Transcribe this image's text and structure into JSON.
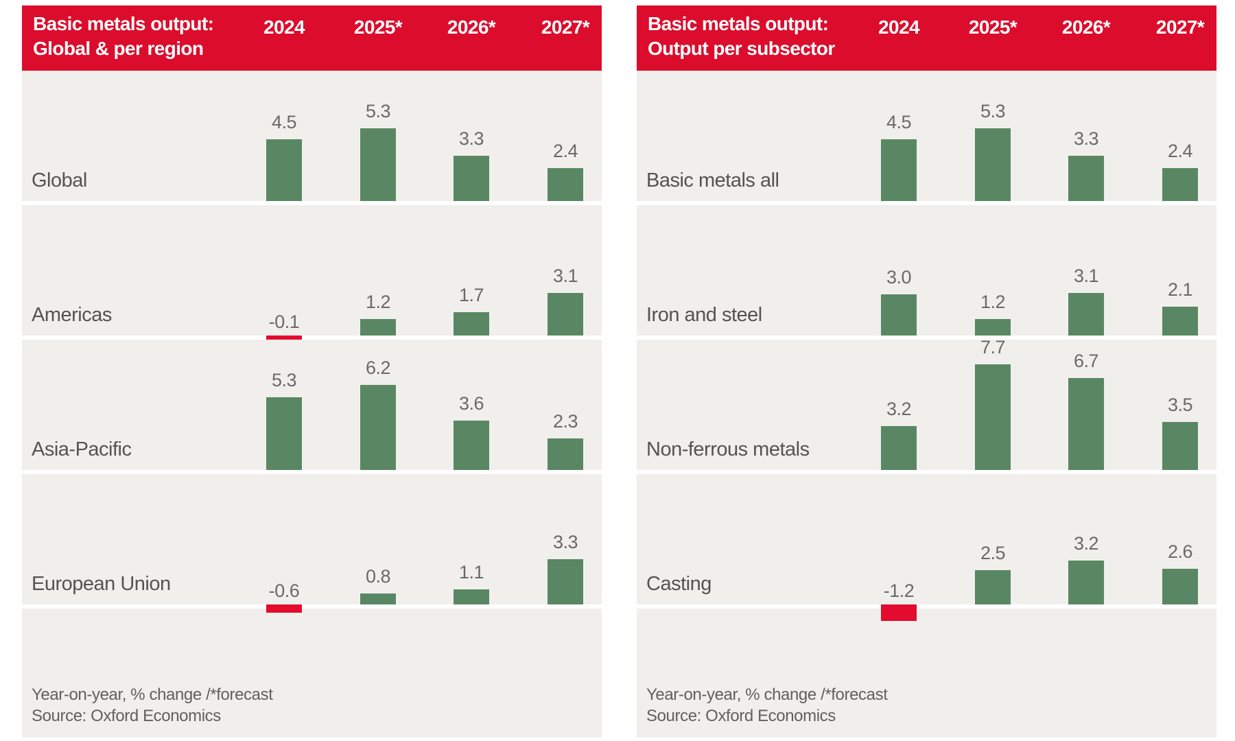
{
  "colors": {
    "header_bg": "#dc0c2c",
    "header_text": "#ffffff",
    "bar_positive": "#5a8763",
    "bar_negative": "#e30b2e",
    "band_bg": "#f1efec",
    "category_text": "#55534e",
    "value_text": "#6b6965",
    "footer_text": "#625f5b"
  },
  "years": [
    "2024",
    "2025*",
    "2026*",
    "2027*"
  ],
  "panels": [
    {
      "title_line1": "Basic metals output:",
      "title_line2": "Global & per region",
      "rows": [
        {
          "label": "Global",
          "values": [
            4.5,
            5.3,
            3.3,
            2.4
          ]
        },
        {
          "label": "Americas",
          "values": [
            -0.1,
            1.2,
            1.7,
            3.1
          ]
        },
        {
          "label": "Asia-Pacific",
          "values": [
            5.3,
            6.2,
            3.6,
            2.3
          ]
        },
        {
          "label": "European Union",
          "values": [
            -0.6,
            0.8,
            1.1,
            3.3
          ]
        }
      ],
      "footnote": "Year-on-year, % change /*forecast",
      "source": "Source: Oxford Economics"
    },
    {
      "title_line1": "Basic metals output:",
      "title_line2": "Output per subsector",
      "rows": [
        {
          "label": "Basic metals all",
          "values": [
            4.5,
            5.3,
            3.3,
            2.4
          ]
        },
        {
          "label": "Iron and steel",
          "values": [
            3.0,
            1.2,
            3.1,
            2.1
          ]
        },
        {
          "label": "Non-ferrous metals",
          "values": [
            3.2,
            7.7,
            6.7,
            3.5
          ]
        },
        {
          "label": "Casting",
          "values": [
            -1.2,
            2.5,
            3.2,
            2.6
          ]
        }
      ],
      "footnote": "Year-on-year, % change /*forecast",
      "source": "Source: Oxford Economics"
    }
  ],
  "chart_data": [
    {
      "type": "bar",
      "title": "Basic metals output: Global & per region",
      "categories": [
        "2024",
        "2025*",
        "2026*",
        "2027*"
      ],
      "series": [
        {
          "name": "Global",
          "values": [
            4.5,
            5.3,
            3.3,
            2.4
          ]
        },
        {
          "name": "Americas",
          "values": [
            -0.1,
            1.2,
            1.7,
            3.1
          ]
        },
        {
          "name": "Asia-Pacific",
          "values": [
            5.3,
            6.2,
            3.6,
            2.3
          ]
        },
        {
          "name": "European Union",
          "values": [
            -0.6,
            0.8,
            1.1,
            3.3
          ]
        }
      ],
      "ylabel": "Year-on-year, % change",
      "note": "/*forecast",
      "source": "Oxford Economics",
      "data_labels": true,
      "grid": false,
      "legend_position": "none",
      "positive_color": "#5a8763",
      "negative_color": "#e30b2e"
    },
    {
      "type": "bar",
      "title": "Basic metals output: Output per subsector",
      "categories": [
        "2024",
        "2025*",
        "2026*",
        "2027*"
      ],
      "series": [
        {
          "name": "Basic metals all",
          "values": [
            4.5,
            5.3,
            3.3,
            2.4
          ]
        },
        {
          "name": "Iron and steel",
          "values": [
            3.0,
            1.2,
            3.1,
            2.1
          ]
        },
        {
          "name": "Non-ferrous metals",
          "values": [
            3.2,
            7.7,
            6.7,
            3.5
          ]
        },
        {
          "name": "Casting",
          "values": [
            -1.2,
            2.5,
            3.2,
            2.6
          ]
        }
      ],
      "ylabel": "Year-on-year, % change",
      "note": "/*forecast",
      "source": "Oxford Economics",
      "data_labels": true,
      "grid": false,
      "legend_position": "none",
      "positive_color": "#5a8763",
      "negative_color": "#e30b2e"
    }
  ]
}
